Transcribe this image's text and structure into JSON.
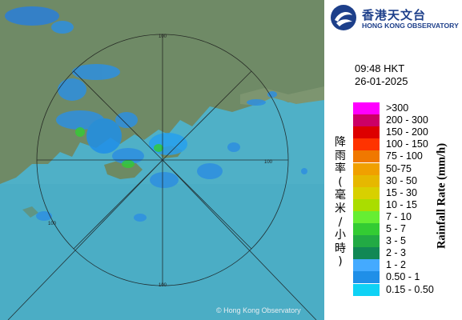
{
  "map": {
    "range_labels": [
      "100",
      "100",
      "100",
      "100"
    ],
    "copyright": "© Hong Kong Observatory"
  },
  "header": {
    "logo_chinese": "香港天文台",
    "logo_english": "HONG KONG OBSERVATORY"
  },
  "timestamp": {
    "time": "09:48 HKT",
    "date": "26-01-2025"
  },
  "legend": {
    "title_english": "Rainfall Rate (mm/h)",
    "title_chinese": "降雨率(毫米/小時)",
    "items": [
      {
        "label": ">300",
        "color": "#ff00ff"
      },
      {
        "label": "200 - 300",
        "color": "#cc0066"
      },
      {
        "label": "150 - 200",
        "color": "#dd0000"
      },
      {
        "label": "100 - 150",
        "color": "#ff3300"
      },
      {
        "label": "75 - 100",
        "color": "#f07800"
      },
      {
        "label": "50-75",
        "color": "#f0a000"
      },
      {
        "label": "30 - 50",
        "color": "#e6b800"
      },
      {
        "label": "15 - 30",
        "color": "#d8d000"
      },
      {
        "label": "10 - 15",
        "color": "#aadd00"
      },
      {
        "label": "7 - 10",
        "color": "#66ee33"
      },
      {
        "label": "5 - 7",
        "color": "#33cc33"
      },
      {
        "label": "3 - 5",
        "color": "#22aa44"
      },
      {
        "label": "2 - 3",
        "color": "#118855"
      },
      {
        "label": "1 - 2",
        "color": "#44aaff"
      },
      {
        "label": "0.50 - 1",
        "color": "#1f8fe8"
      },
      {
        "label": "0.15 - 0.50",
        "color": "#0fd2f5"
      }
    ]
  }
}
